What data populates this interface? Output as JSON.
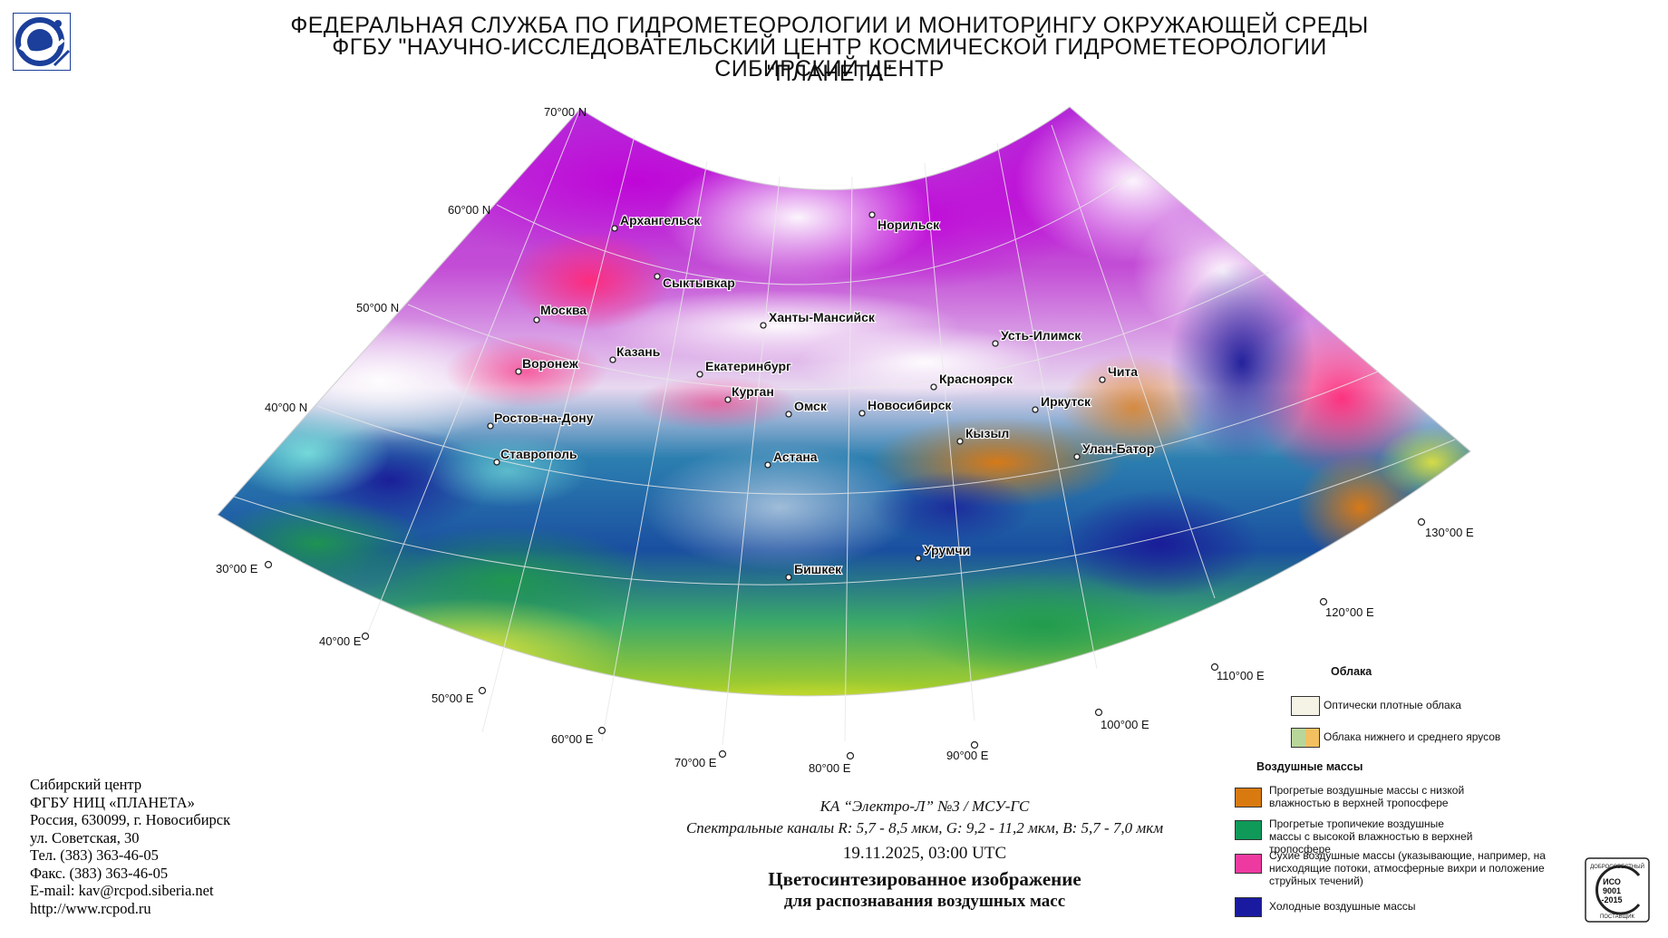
{
  "header": {
    "line1": "ФЕДЕРАЛЬНАЯ СЛУЖБА ПО ГИДРОМЕТЕОРОЛОГИИ И МОНИТОРИНГУ ОКРУЖАЮЩЕЙ СРЕДЫ",
    "line2": "ФГБУ \"НАУЧНО-ИССЛЕДОВАТЕЛЬСКИЙ ЦЕНТР КОСМИЧЕСКОЙ ГИДРОМЕТЕОРОЛОГИИ \"ПЛАНЕТА\"",
    "line3": "СИБИРСКИЙ ЦЕНТР"
  },
  "map": {
    "latitude_labels": [
      "70°00 N",
      "60°00 N",
      "50°00 N",
      "40°00 N"
    ],
    "longitude_labels": [
      "30°00 E",
      "40°00 E",
      "50°00 E",
      "60°00 E",
      "70°00 E",
      "80°00 E",
      "90°00 E",
      "100°00 E",
      "110°00 E",
      "120°00 E",
      "130°00 E"
    ],
    "cities": [
      "Архангельск",
      "Норильск",
      "Сыктывкар",
      "Москва",
      "Ханты-Мансийск",
      "Усть-Илимск",
      "Казань",
      "Воронеж",
      "Екатеринбург",
      "Красноярск",
      "Чита",
      "Курган",
      "Омск",
      "Новосибирск",
      "Иркутск",
      "Ростов-на-Дону",
      "Кызыл",
      "Улан-Батор",
      "Ставрополь",
      "Астана",
      "Урумчи",
      "Бишкек"
    ]
  },
  "legend": {
    "clouds_title": "Облака",
    "clouds_items": [
      "Оптически плотные облака",
      "Облака нижнего и среднего ярусов"
    ],
    "air_title": "Воздушные массы",
    "air_items": [
      {
        "text": "Прогретые воздушные массы с низкой влажностью в верхней тропосфере",
        "color": "#d97a10"
      },
      {
        "text": "Прогретые тропичекие воздушные массы с высокой влажностью в верхней тропосфере",
        "color": "#0f9a5a"
      },
      {
        "text": "Сухие воздушные массы (указывающие, например, на нисходящие потоки, атмосферные вихри и положение струйных течений)",
        "color": "#ee3aa0"
      },
      {
        "text": "Холодные воздушные массы",
        "color": "#1a1aa0"
      }
    ]
  },
  "address": {
    "lines": [
      "Сибирский центр",
      "ФГБУ НИЦ «ПЛАНЕТА»",
      "Россия, 630099, г. Новосибирск",
      "ул. Советская, 30",
      "Тел. (383) 363-46-05",
      "Факс. (383) 363-46-05",
      "E-mail: kav@rcpod.siberia.net",
      "http://www.rcpod.ru"
    ]
  },
  "caption": {
    "satellite": "КА “Электро-Л” №3 / МСУ-ГС",
    "channels": "Спектральные каналы R: 5,7 - 8,5 мкм, G: 9,2 - 11,2 мкм, B: 5,7 - 7,0 мкм",
    "datetime": "19.11.2025, 03:00 UTC",
    "title1": "Цветосинтезированное изображение",
    "title2": "для распознавания воздушных масс"
  },
  "iso_badge": {
    "top": "ДОБРОСОВЕСТНЫЙ",
    "iso": "ИСО",
    "num": "9001",
    "year": "-2015",
    "bottom": "ПОСТАВЩИК"
  }
}
